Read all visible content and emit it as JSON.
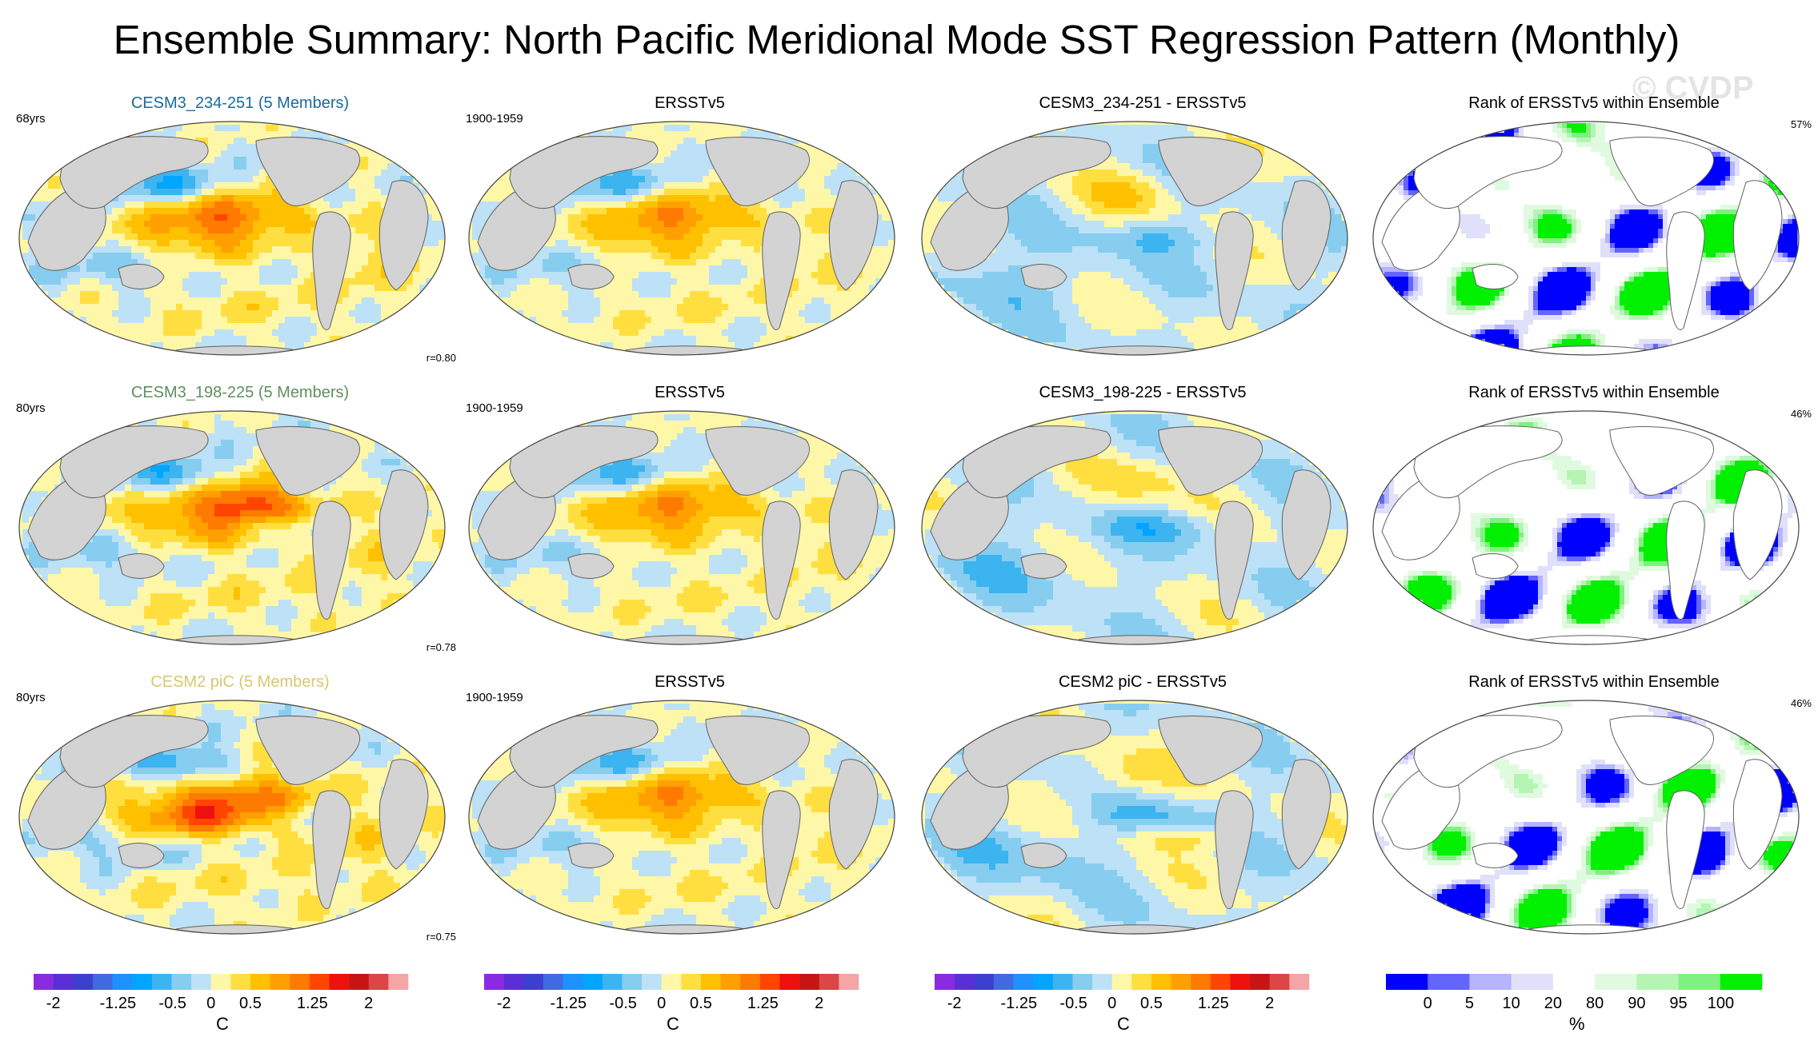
{
  "title": "Ensemble Summary: North Pacific Meridional Mode SST Regression Pattern (Monthly)",
  "watermark": "© CVDP",
  "rows": [
    {
      "ens": {
        "title": "CESM3_234-251 (5 Members)",
        "color": "#1a6a9a",
        "years": "68yrs",
        "corr": "r=0.80",
        "variant": 0
      },
      "obs": {
        "title": "ERSSTv5",
        "period": "1900-1959"
      },
      "diff": {
        "title": "CESM3_234-251 - ERSSTv5"
      },
      "rank": {
        "title": "Rank of ERSSTv5 within Ensemble",
        "pct": "57%"
      }
    },
    {
      "ens": {
        "title": "CESM3_198-225 (5 Members)",
        "color": "#5e8f5e",
        "years": "80yrs",
        "corr": "r=0.78",
        "variant": 1
      },
      "obs": {
        "title": "ERSSTv5",
        "period": "1900-1959"
      },
      "diff": {
        "title": "CESM3_198-225 - ERSSTv5"
      },
      "rank": {
        "title": "Rank of ERSSTv5 within Ensemble",
        "pct": "46%"
      }
    },
    {
      "ens": {
        "title": "CESM2 piC (5 Members)",
        "color": "#d9c76e",
        "years": "80yrs",
        "corr": "r=0.75",
        "variant": 2
      },
      "obs": {
        "title": "ERSSTv5",
        "period": "1900-1959"
      },
      "diff": {
        "title": "CESM2 piC - ERSSTv5"
      },
      "rank": {
        "title": "Rank of ERSSTv5 within Ensemble",
        "pct": "46%"
      }
    }
  ],
  "chart_data": {
    "type": "heatmap",
    "projection": "Robinson (Pacific-centered)",
    "sst_colorbar": {
      "units": "C",
      "levels": [
        -2,
        -1.75,
        -1.5,
        -1.25,
        -1,
        -0.75,
        -0.5,
        -0.25,
        0,
        0.25,
        0.5,
        0.75,
        1,
        1.25,
        1.5,
        1.75,
        2
      ],
      "tick_labels": [
        "-2",
        "-1.25",
        "-0.5",
        "0",
        "0.5",
        "1.25",
        "2"
      ],
      "tick_levels": [
        -2,
        -1.25,
        -0.5,
        0,
        0.5,
        1.25,
        2
      ],
      "colors": [
        "#8a2be2",
        "#5b2fd8",
        "#3d3fd1",
        "#4169e1",
        "#1e90ff",
        "#00a5ff",
        "#3cb4f0",
        "#87cdf0",
        "#bde1f7",
        "#fff7a8",
        "#ffdf40",
        "#ffc000",
        "#ffa000",
        "#ff7a00",
        "#ff4500",
        "#ef1010",
        "#c81414",
        "#dc4646",
        "#f4a5a5"
      ]
    },
    "rank_colorbar": {
      "units": "%",
      "levels": [
        0,
        5,
        10,
        20,
        80,
        90,
        95,
        100
      ],
      "tick_labels": [
        "0",
        "5",
        "10",
        "20",
        "80",
        "90",
        "95",
        "100"
      ],
      "colors": [
        "#0000ff",
        "#6464ff",
        "#b4b4ff",
        "#e0e0fa",
        "#ffffff",
        "#e0fae0",
        "#b4f5b4",
        "#80f080",
        "#00f000"
      ]
    }
  }
}
